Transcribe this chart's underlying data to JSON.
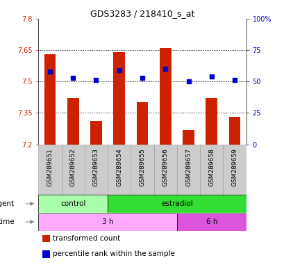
{
  "title": "GDS3283 / 218410_s_at",
  "samples": [
    "GSM289651",
    "GSM289652",
    "GSM289653",
    "GSM289654",
    "GSM289655",
    "GSM289656",
    "GSM289657",
    "GSM289658",
    "GSM289659"
  ],
  "transformed_counts": [
    7.63,
    7.42,
    7.31,
    7.64,
    7.4,
    7.66,
    7.27,
    7.42,
    7.33
  ],
  "percentile_ranks": [
    58,
    53,
    51,
    59,
    53,
    60,
    50,
    54,
    51
  ],
  "y_min": 7.2,
  "y_max": 7.8,
  "y_ticks": [
    7.2,
    7.35,
    7.5,
    7.65,
    7.8
  ],
  "y_tick_labels": [
    "7.2",
    "7.35",
    "7.5",
    "7.65",
    "7.8"
  ],
  "y2_ticks": [
    0,
    25,
    50,
    75,
    100
  ],
  "y2_tick_labels": [
    "0",
    "25",
    "50",
    "75",
    "100%"
  ],
  "bar_color": "#cc2200",
  "dot_color": "#0000cc",
  "bar_bottom": 7.2,
  "agent_groups": [
    {
      "label": "control",
      "start": 0,
      "end": 3,
      "color": "#aaffaa"
    },
    {
      "label": "estradiol",
      "start": 3,
      "end": 9,
      "color": "#33dd33"
    }
  ],
  "time_groups": [
    {
      "label": "3 h",
      "start": 0,
      "end": 6,
      "color": "#ffaaff"
    },
    {
      "label": "6 h",
      "start": 6,
      "end": 9,
      "color": "#dd55dd"
    }
  ],
  "legend_items": [
    {
      "color": "#cc2200",
      "label": "transformed count"
    },
    {
      "color": "#0000cc",
      "label": "percentile rank within the sample"
    }
  ],
  "left_color": "#cc2200",
  "right_color": "#0000cc",
  "grid_color": "#000000",
  "bg_color": "#ffffff",
  "tick_area_color": "#cccccc",
  "bar_width": 0.5
}
